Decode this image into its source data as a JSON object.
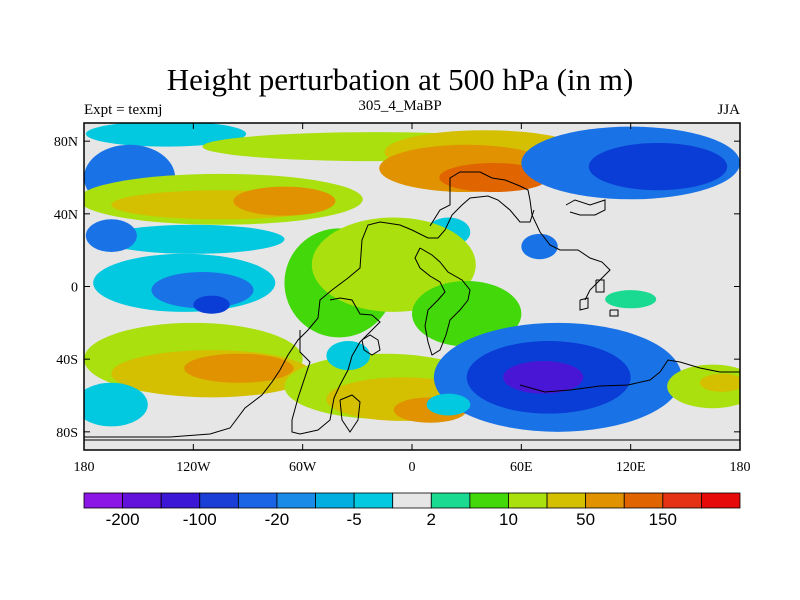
{
  "title": "Height perturbation at 500 hPa (in m)",
  "left_label": "Expt = texmj",
  "center_label": "305_4_MaBP",
  "right_label": "JJA",
  "map": {
    "projection": "cylindrical equidistant",
    "lon_range": [
      -180,
      180
    ],
    "lat_range": [
      -90,
      90
    ],
    "x_ticks": [
      {
        "value": -180,
        "label": "180"
      },
      {
        "value": -120,
        "label": "120W"
      },
      {
        "value": -60,
        "label": "60W"
      },
      {
        "value": 0,
        "label": "0"
      },
      {
        "value": 60,
        "label": "60E"
      },
      {
        "value": 120,
        "label": "120E"
      },
      {
        "value": 180,
        "label": "180"
      }
    ],
    "y_ticks": [
      {
        "value": 80,
        "label": "80N"
      },
      {
        "value": 40,
        "label": "40N"
      },
      {
        "value": 0,
        "label": "0"
      },
      {
        "value": -40,
        "label": "40S"
      },
      {
        "value": -80,
        "label": "80S"
      }
    ],
    "background_fill": "#e6e6e6",
    "field_blobs": [
      {
        "lon": -135,
        "lat": 84,
        "rx": 44,
        "ry": 7,
        "color": "#02c8e0"
      },
      {
        "lon": -20,
        "lat": 77,
        "rx": 95,
        "ry": 8,
        "color": "#a9e00d"
      },
      {
        "lon": 40,
        "lat": 74,
        "rx": 55,
        "ry": 12,
        "color": "#d4bf00"
      },
      {
        "lon": 30,
        "lat": 65,
        "rx": 48,
        "ry": 13,
        "color": "#e09200"
      },
      {
        "lon": 45,
        "lat": 60,
        "rx": 30,
        "ry": 8,
        "color": "#e06400"
      },
      {
        "lon": 120,
        "lat": 68,
        "rx": 60,
        "ry": 20,
        "color": "#1a73e6"
      },
      {
        "lon": 135,
        "lat": 66,
        "rx": 38,
        "ry": 13,
        "color": "#0a3dd6"
      },
      {
        "lon": -155,
        "lat": 60,
        "rx": 25,
        "ry": 18,
        "color": "#1a73e6"
      },
      {
        "lon": -105,
        "lat": 48,
        "rx": 78,
        "ry": 14,
        "color": "#a9e00d"
      },
      {
        "lon": -105,
        "lat": 45,
        "rx": 60,
        "ry": 8,
        "color": "#d4bf00"
      },
      {
        "lon": -70,
        "lat": 47,
        "rx": 28,
        "ry": 8,
        "color": "#e09200"
      },
      {
        "lon": -120,
        "lat": 26,
        "rx": 50,
        "ry": 8,
        "color": "#02c8e0"
      },
      {
        "lon": -165,
        "lat": 28,
        "rx": 14,
        "ry": 9,
        "color": "#1a73e6"
      },
      {
        "lon": 20,
        "lat": 30,
        "rx": 12,
        "ry": 8,
        "color": "#02c8e0"
      },
      {
        "lon": 70,
        "lat": 22,
        "rx": 10,
        "ry": 7,
        "color": "#1a73e6"
      },
      {
        "lon": -125,
        "lat": 2,
        "rx": 50,
        "ry": 16,
        "color": "#02c8e0"
      },
      {
        "lon": -115,
        "lat": -2,
        "rx": 28,
        "ry": 10,
        "color": "#1a73e6"
      },
      {
        "lon": -110,
        "lat": -10,
        "rx": 10,
        "ry": 5,
        "color": "#0a3dd6"
      },
      {
        "lon": -40,
        "lat": 2,
        "rx": 30,
        "ry": 30,
        "color": "#42d80a"
      },
      {
        "lon": -10,
        "lat": 12,
        "rx": 45,
        "ry": 26,
        "color": "#a9e00d"
      },
      {
        "lon": 30,
        "lat": -15,
        "rx": 30,
        "ry": 18,
        "color": "#42d80a"
      },
      {
        "lon": 120,
        "lat": -7,
        "rx": 14,
        "ry": 5,
        "color": "#1ad990"
      },
      {
        "lon": -120,
        "lat": -40,
        "rx": 60,
        "ry": 20,
        "color": "#a9e00d"
      },
      {
        "lon": -110,
        "lat": -48,
        "rx": 55,
        "ry": 13,
        "color": "#d4bf00"
      },
      {
        "lon": -95,
        "lat": -45,
        "rx": 30,
        "ry": 8,
        "color": "#e09200"
      },
      {
        "lon": -165,
        "lat": -65,
        "rx": 20,
        "ry": 12,
        "color": "#02c8e0"
      },
      {
        "lon": -15,
        "lat": -55,
        "rx": 55,
        "ry": 18,
        "color": "#a9e00d"
      },
      {
        "lon": -5,
        "lat": -62,
        "rx": 42,
        "ry": 12,
        "color": "#d4bf00"
      },
      {
        "lon": 10,
        "lat": -68,
        "rx": 20,
        "ry": 7,
        "color": "#e09200"
      },
      {
        "lon": -35,
        "lat": -38,
        "rx": 12,
        "ry": 8,
        "color": "#02c8e0"
      },
      {
        "lon": 80,
        "lat": -50,
        "rx": 68,
        "ry": 30,
        "color": "#1a73e6"
      },
      {
        "lon": 75,
        "lat": -50,
        "rx": 45,
        "ry": 20,
        "color": "#0a3dd6"
      },
      {
        "lon": 72,
        "lat": -50,
        "rx": 22,
        "ry": 9,
        "color": "#4a16d6"
      },
      {
        "lon": 20,
        "lat": -65,
        "rx": 12,
        "ry": 6,
        "color": "#02c8e0"
      },
      {
        "lon": 165,
        "lat": -55,
        "rx": 25,
        "ry": 12,
        "color": "#a9e00d"
      },
      {
        "lon": 170,
        "lat": -53,
        "rx": 12,
        "ry": 5,
        "color": "#d4bf00"
      }
    ]
  },
  "colorbar": {
    "colors": [
      "#8b16e6",
      "#6312dc",
      "#3d17d6",
      "#1a3ed6",
      "#1a64e6",
      "#1a8be6",
      "#02aee0",
      "#02c8e0",
      "#e6e6e6",
      "#1ad990",
      "#42d80a",
      "#a9e00d",
      "#d4bf00",
      "#e09200",
      "#e06400",
      "#e63214",
      "#e60a0a"
    ],
    "labels": [
      "-200",
      "-100",
      "-20",
      "-5",
      "2",
      "10",
      "50",
      "150"
    ]
  }
}
